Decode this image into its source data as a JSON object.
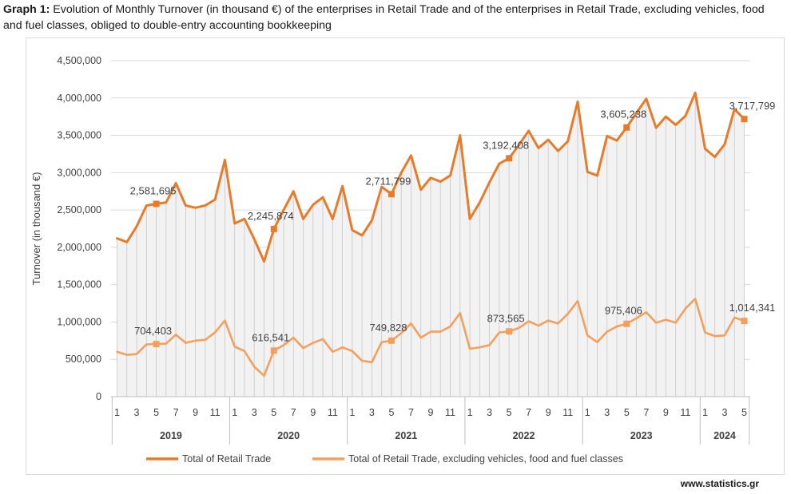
{
  "title": {
    "prefix": "Graph 1:",
    "text": "Evolution of Monthly Turnover (in thousand €) of the enterprises in Retail Trade and of the enterprises in Retail Trade, excluding vehicles, food and fuel classes, obliged to double-entry accounting bookkeeping"
  },
  "source": "www.statistics.gr",
  "colors": {
    "total": "#e87b2a",
    "excl": "#f2a05c",
    "grid": "#d9d9d9",
    "area": "#f2f2f2",
    "text": "#404040"
  },
  "chart_data": {
    "type": "line",
    "ylabel": "Turnover (in thousand €)",
    "ylim": [
      0,
      4500000
    ],
    "yticks": [
      0,
      500000,
      1000000,
      1500000,
      2000000,
      2500000,
      3000000,
      3500000,
      4000000,
      4500000
    ],
    "ytick_labels": [
      "0",
      "500,000",
      "1,000,000",
      "1,500,000",
      "2,000,000",
      "2,500,000",
      "3,000,000",
      "3,500,000",
      "4,000,000",
      "4,500,000"
    ],
    "years": [
      {
        "label": "2019",
        "months": 12
      },
      {
        "label": "2020",
        "months": 12
      },
      {
        "label": "2021",
        "months": 12
      },
      {
        "label": "2022",
        "months": 12
      },
      {
        "label": "2023",
        "months": 12
      },
      {
        "label": "2024",
        "months": 5
      }
    ],
    "month_tick_labels": [
      "1",
      "",
      "3",
      "",
      "5",
      "",
      "7",
      "",
      "9",
      "",
      "11",
      ""
    ],
    "series": [
      {
        "name": "Total of Retail Trade",
        "values": [
          2120000,
          2070000,
          2280000,
          2560000,
          2581695,
          2600000,
          2860000,
          2560000,
          2530000,
          2560000,
          2640000,
          3170000,
          2320000,
          2380000,
          2110000,
          1810000,
          2245874,
          2500000,
          2750000,
          2380000,
          2570000,
          2670000,
          2380000,
          2820000,
          2230000,
          2160000,
          2360000,
          2810000,
          2711799,
          3000000,
          3230000,
          2770000,
          2930000,
          2880000,
          2960000,
          3500000,
          2380000,
          2600000,
          2870000,
          3120000,
          3192408,
          3370000,
          3560000,
          3330000,
          3440000,
          3290000,
          3420000,
          3950000,
          3010000,
          2960000,
          3490000,
          3430000,
          3605238,
          3800000,
          3990000,
          3600000,
          3750000,
          3640000,
          3760000,
          4070000,
          3320000,
          3210000,
          3380000,
          3850000,
          3717799
        ]
      },
      {
        "name": "Total of Retail Trade, excluding vehicles, food and fuel classes",
        "values": [
          600000,
          560000,
          570000,
          700000,
          704403,
          710000,
          830000,
          720000,
          750000,
          760000,
          860000,
          1020000,
          670000,
          610000,
          400000,
          280000,
          616541,
          690000,
          790000,
          650000,
          720000,
          770000,
          600000,
          660000,
          610000,
          480000,
          460000,
          730000,
          749828,
          850000,
          980000,
          790000,
          870000,
          870000,
          940000,
          1120000,
          640000,
          660000,
          690000,
          860000,
          873565,
          920000,
          1010000,
          950000,
          1020000,
          980000,
          1110000,
          1280000,
          820000,
          730000,
          870000,
          940000,
          975406,
          1050000,
          1130000,
          990000,
          1030000,
          990000,
          1180000,
          1310000,
          860000,
          810000,
          820000,
          1060000,
          1014341
        ]
      }
    ],
    "data_labels": [
      {
        "series": 0,
        "index": 4,
        "text": "2,581,695"
      },
      {
        "series": 0,
        "index": 16,
        "text": "2,245,874"
      },
      {
        "series": 0,
        "index": 28,
        "text": "2,711,799"
      },
      {
        "series": 0,
        "index": 40,
        "text": "3,192,408"
      },
      {
        "series": 0,
        "index": 52,
        "text": "3,605,238"
      },
      {
        "series": 0,
        "index": 64,
        "text": "3,717,799"
      },
      {
        "series": 1,
        "index": 4,
        "text": "704,403"
      },
      {
        "series": 1,
        "index": 16,
        "text": "616,541"
      },
      {
        "series": 1,
        "index": 28,
        "text": "749,828"
      },
      {
        "series": 1,
        "index": 40,
        "text": "873,565"
      },
      {
        "series": 1,
        "index": 52,
        "text": "975,406"
      },
      {
        "series": 1,
        "index": 64,
        "text": "1,014,341"
      }
    ],
    "legend_position": "bottom"
  }
}
